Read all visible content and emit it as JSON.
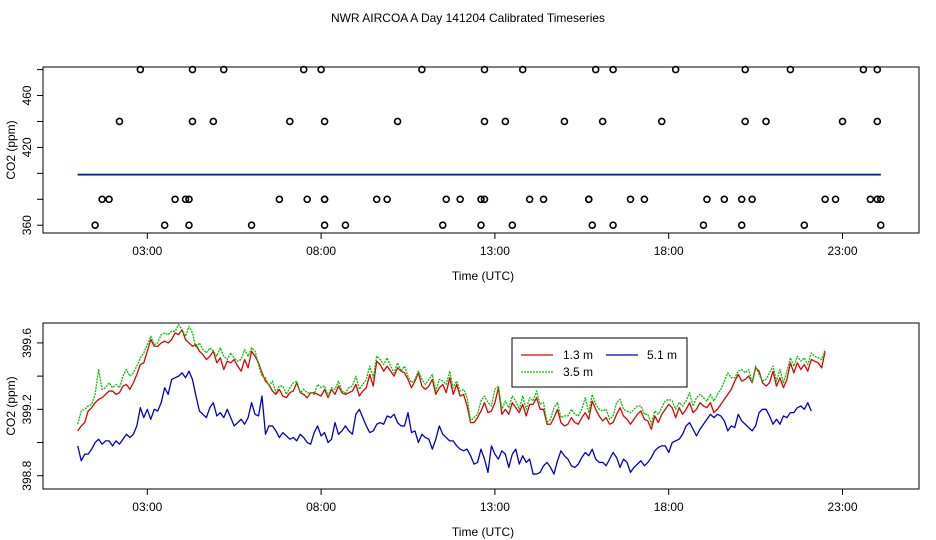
{
  "title": "NWR AIRCOA A  Day 141204  Calibrated Timeseries",
  "colors": {
    "s13": "#e00000",
    "s35": "#00c000",
    "s51": "#0000cc",
    "axis": "#000000"
  },
  "chart_data": [
    {
      "type": "scatter",
      "xlabel": "Time (UTC)",
      "ylabel": "CO2 (ppm)",
      "xlim": [
        0.0,
        25.2
      ],
      "ylim": [
        354,
        482
      ],
      "xticks": [
        3,
        8,
        13,
        18,
        23
      ],
      "xtick_labels": [
        "03:00",
        "08:00",
        "13:00",
        "18:00",
        "23:00"
      ],
      "yticks": [
        360,
        420,
        460
      ],
      "ytick_labels": [
        "360",
        "420",
        "460"
      ],
      "y_minor_ticks": [
        380,
        400,
        440,
        480
      ],
      "points": {
        "y": [
          360,
          380,
          440,
          480,
          380
        ],
        "x": [
          [
            1.5,
            3.5,
            4.2,
            6.0,
            8.1,
            8.7,
            11.5,
            12.6,
            13.5,
            15.8,
            16.4,
            19.0,
            20.1,
            21.9,
            24.1
          ],
          [
            1.9,
            3.8,
            4.2,
            6.8,
            8.1,
            9.9,
            12.0,
            12.7,
            14.0,
            15.7,
            16.9,
            19.1,
            20.1,
            22.8,
            24.0
          ],
          [
            2.2,
            4.3,
            4.9,
            7.1,
            8.1,
            10.2,
            12.7,
            13.3,
            15.0,
            16.1,
            17.8,
            20.2,
            20.8,
            23.0,
            24.0
          ],
          [
            2.8,
            4.3,
            5.2,
            7.5,
            8.0,
            10.9,
            12.7,
            13.8,
            15.9,
            16.4,
            18.2,
            20.2,
            21.5,
            23.6,
            24.0
          ],
          [
            1.7,
            4.1,
            7.6,
            8.1,
            9.6,
            11.6,
            12.6,
            14.4,
            15.7,
            17.3,
            19.6,
            20.4,
            22.5,
            23.8,
            24.1
          ]
        ]
      },
      "series": [
        {
          "name": "1.3 m",
          "x": [
            1.0,
            24.1
          ],
          "values": [
            399.1,
            399.1
          ]
        },
        {
          "name": "3.5 m",
          "x": [
            1.0,
            24.1
          ],
          "values": [
            399.2,
            399.2
          ]
        },
        {
          "name": "5.1 m",
          "x": [
            1.0,
            24.1
          ],
          "values": [
            398.9,
            398.9
          ]
        }
      ]
    },
    {
      "type": "line",
      "xlabel": "Time (UTC)",
      "ylabel": "CO2 (ppm)",
      "xlim": [
        0.0,
        25.2
      ],
      "ylim": [
        398.72,
        399.72
      ],
      "xticks": [
        3,
        8,
        13,
        18,
        23
      ],
      "xtick_labels": [
        "03:00",
        "08:00",
        "13:00",
        "18:00",
        "23:00"
      ],
      "yticks": [
        398.8,
        399.2,
        399.6
      ],
      "ytick_labels": [
        "398.8",
        "399.2",
        "399.6"
      ],
      "y_minor_ticks": [
        399.0,
        399.4
      ],
      "legend": {
        "position": "top-center",
        "entries": [
          "1.3 m",
          "5.1 m",
          "3.5 m"
        ]
      },
      "x_start": 1.0,
      "x_step": 0.1,
      "series": [
        {
          "name": "1.3 m",
          "values": [
            399.07,
            399.1,
            399.12,
            399.19,
            399.21,
            399.24,
            399.26,
            399.27,
            399.29,
            399.31,
            399.31,
            399.29,
            399.3,
            399.34,
            399.35,
            399.32,
            399.36,
            399.41,
            399.47,
            399.48,
            399.55,
            399.62,
            399.58,
            399.58,
            399.6,
            399.61,
            399.6,
            399.62,
            399.66,
            399.65,
            399.68,
            399.62,
            399.6,
            399.58,
            399.59,
            399.55,
            399.53,
            399.5,
            399.52,
            399.55,
            399.48,
            399.51,
            399.44,
            399.49,
            399.48,
            399.5,
            399.46,
            399.43,
            399.5,
            399.45,
            399.55,
            399.52,
            399.48,
            399.42,
            399.37,
            399.35,
            399.31,
            399.29,
            399.32,
            399.28,
            399.27,
            399.3,
            399.31,
            399.36,
            399.3,
            399.29,
            399.27,
            399.3,
            399.3,
            399.29,
            399.28,
            399.32,
            399.27,
            399.32,
            399.29,
            399.34,
            399.3,
            399.29,
            399.3,
            399.31,
            399.35,
            399.28,
            399.31,
            399.33,
            399.41,
            399.34,
            399.49,
            399.47,
            399.43,
            399.46,
            399.43,
            399.4,
            399.45,
            399.43,
            399.42,
            399.38,
            399.33,
            399.37,
            399.42,
            399.34,
            399.32,
            399.34,
            399.38,
            399.29,
            399.33,
            399.35,
            399.3,
            399.39,
            399.29,
            399.35,
            399.28,
            399.29,
            399.22,
            399.12,
            399.12,
            399.15,
            399.19,
            399.24,
            399.18,
            399.19,
            399.24,
            399.33,
            399.17,
            399.2,
            399.17,
            399.24,
            399.21,
            399.18,
            399.23,
            399.16,
            399.23,
            399.23,
            399.27,
            399.2,
            399.2,
            399.11,
            399.11,
            399.15,
            399.2,
            399.12,
            399.1,
            399.11,
            399.15,
            399.12,
            399.11,
            399.15,
            399.18,
            399.14,
            399.25,
            399.2,
            399.16,
            399.13,
            399.15,
            399.11,
            399.12,
            399.17,
            399.21,
            399.16,
            399.14,
            399.11,
            399.14,
            399.17,
            399.19,
            399.14,
            399.13,
            399.08,
            399.16,
            399.12,
            399.17,
            399.2,
            399.23,
            399.21,
            399.15,
            399.21,
            399.17,
            399.2,
            399.24,
            399.18,
            399.2,
            399.24,
            399.22,
            399.21,
            399.24,
            399.18,
            399.2,
            399.23,
            399.26,
            399.29,
            399.32,
            399.37,
            399.41,
            399.37,
            399.38,
            399.4,
            399.36,
            399.45,
            399.43,
            399.36,
            399.34,
            399.36,
            399.43,
            399.34,
            399.39,
            399.33,
            399.38,
            399.48,
            399.42,
            399.48,
            399.44,
            399.47,
            399.43,
            399.5,
            399.49,
            399.48,
            399.45,
            399.55
          ]
        },
        {
          "name": "3.5 m",
          "values": [
            399.11,
            399.19,
            399.2,
            399.22,
            399.23,
            399.29,
            399.44,
            399.32,
            399.33,
            399.36,
            399.33,
            399.35,
            399.33,
            399.4,
            399.44,
            399.4,
            399.42,
            399.46,
            399.51,
            399.54,
            399.59,
            399.64,
            399.59,
            399.6,
            399.65,
            399.66,
            399.65,
            399.67,
            399.67,
            399.71,
            399.68,
            399.64,
            399.7,
            399.66,
            399.57,
            399.6,
            399.56,
            399.54,
            399.57,
            399.55,
            399.52,
            399.57,
            399.52,
            399.5,
            399.54,
            399.51,
            399.49,
            399.5,
            399.56,
            399.52,
            399.57,
            399.55,
            399.47,
            399.4,
            399.39,
            399.34,
            399.37,
            399.3,
            399.34,
            399.34,
            399.29,
            399.33,
            399.36,
            399.37,
            399.3,
            399.32,
            399.3,
            399.3,
            399.29,
            399.35,
            399.33,
            399.34,
            399.28,
            399.33,
            399.32,
            399.37,
            399.31,
            399.3,
            399.33,
            399.34,
            399.4,
            399.32,
            399.35,
            399.38,
            399.46,
            399.39,
            399.52,
            399.5,
            399.47,
            399.51,
            399.46,
            399.42,
            399.48,
            399.43,
            399.46,
            399.4,
            399.36,
            399.38,
            399.43,
            399.38,
            399.35,
            399.38,
            399.41,
            399.31,
            399.38,
            399.37,
            399.35,
            399.43,
            399.33,
            399.37,
            399.31,
            399.32,
            399.27,
            399.13,
            399.15,
            399.17,
            399.25,
            399.28,
            399.24,
            399.22,
            399.32,
            399.34,
            399.2,
            399.25,
            399.21,
            399.28,
            399.25,
            399.2,
            399.28,
            399.2,
            399.27,
            399.25,
            399.31,
            399.23,
            399.24,
            399.12,
            399.14,
            399.21,
            399.24,
            399.15,
            399.16,
            399.16,
            399.2,
            399.17,
            399.16,
            399.2,
            399.27,
            399.18,
            399.29,
            399.23,
            399.2,
            399.19,
            399.2,
            399.14,
            399.16,
            399.24,
            399.26,
            399.2,
            399.19,
            399.18,
            399.2,
            399.22,
            399.22,
            399.17,
            399.17,
            399.11,
            399.19,
            399.17,
            399.21,
            399.25,
            399.26,
            399.25,
            399.2,
            399.24,
            399.22,
            399.25,
            399.3,
            399.22,
            399.27,
            399.29,
            399.27,
            399.25,
            399.29,
            399.25,
            399.29,
            399.32,
            399.37,
            399.42,
            399.39,
            399.39,
            399.43,
            399.44,
            399.42,
            399.44,
            399.36,
            399.46,
            399.41,
            399.37,
            399.38,
            399.42,
            399.46,
            399.37,
            399.44,
            399.36,
            399.43,
            399.51,
            399.46,
            399.52,
            399.49,
            399.51,
            399.47,
            399.54,
            399.52,
            399.51,
            399.5,
            399.56
          ]
        },
        {
          "name": "5.1 m",
          "values": [
            398.98,
            398.89,
            398.93,
            398.93,
            398.96,
            399.0,
            399.02,
            398.99,
            399.01,
            399.01,
            398.98,
            399.01,
            398.99,
            399.02,
            399.05,
            399.03,
            399.05,
            399.1,
            399.21,
            399.15,
            399.2,
            399.14,
            399.2,
            399.19,
            399.24,
            399.33,
            399.29,
            399.38,
            399.39,
            399.4,
            399.42,
            399.39,
            399.43,
            399.38,
            399.28,
            399.19,
            399.17,
            399.15,
            399.21,
            399.24,
            399.16,
            399.18,
            399.15,
            399.2,
            399.15,
            399.1,
            399.12,
            399.14,
            399.11,
            399.15,
            399.24,
            399.17,
            399.16,
            399.28,
            399.05,
            399.1,
            399.1,
            399.07,
            399.03,
            399.06,
            399.04,
            399.02,
            399.03,
            399.01,
            399.05,
            399.03,
            399.0,
            398.99,
            399.06,
            399.1,
            399.04,
            399.06,
            399.0,
            399.02,
            399.12,
            399.05,
            399.07,
            399.1,
            399.07,
            399.05,
            399.17,
            399.2,
            399.15,
            399.1,
            399.06,
            399.07,
            399.11,
            399.12,
            399.11,
            399.16,
            399.15,
            399.17,
            399.12,
            399.1,
            399.1,
            399.18,
            399.06,
            399.07,
            399.0,
            399.05,
            399.03,
            399.02,
            398.96,
            399.02,
            399.1,
            399.05,
            399.03,
            399.01,
            399.01,
            398.98,
            398.96,
            398.95,
            398.96,
            398.92,
            398.87,
            398.88,
            398.96,
            398.9,
            398.82,
            398.98,
            398.93,
            398.9,
            398.95,
            398.93,
            398.85,
            398.93,
            398.96,
            398.87,
            398.92,
            398.88,
            398.9,
            398.81,
            398.81,
            398.82,
            398.86,
            398.88,
            398.85,
            398.81,
            398.89,
            398.95,
            398.92,
            398.9,
            398.86,
            398.85,
            398.87,
            398.91,
            398.94,
            398.92,
            398.96,
            398.9,
            398.88,
            398.88,
            398.86,
            398.9,
            398.94,
            398.91,
            398.85,
            398.9,
            398.88,
            398.82,
            398.85,
            398.87,
            398.89,
            398.86,
            398.88,
            398.91,
            398.95,
            398.97,
            398.98,
            398.98,
            398.94,
            399.0,
            399.01,
            399.02,
            399.05,
            399.1,
            399.12,
            399.08,
            399.04,
            399.08,
            399.11,
            399.14,
            399.17,
            399.15,
            399.17,
            399.16,
            399.13,
            399.07,
            399.1,
            399.09,
            399.17,
            399.13,
            399.11,
            399.09,
            399.07,
            399.1,
            399.18,
            399.2,
            399.2,
            399.16,
            399.11,
            399.14,
            399.11,
            399.16,
            399.15,
            399.18,
            399.18,
            399.21,
            399.22,
            399.2,
            399.24,
            399.19
          ]
        }
      ]
    }
  ]
}
